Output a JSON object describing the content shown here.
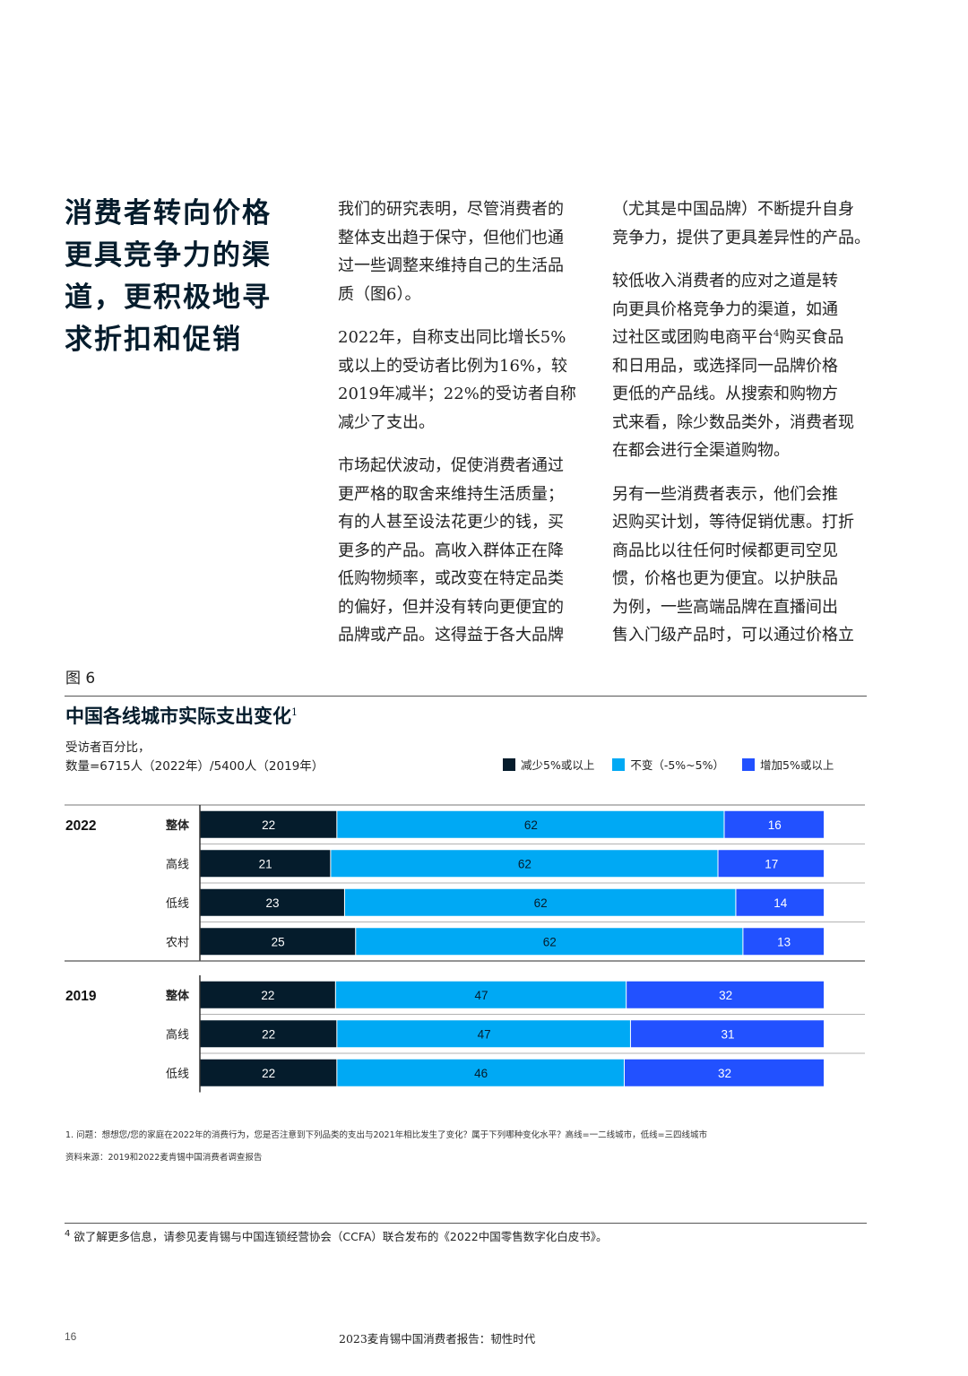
{
  "headline": {
    "lines": [
      "消费者转向价格",
      "更具竞争力的渠",
      "道，更积极地寻",
      "求折扣和促销"
    ]
  },
  "body": {
    "left_column": [
      {
        "lines": [
          "我们的研究表明，尽管消费者的",
          "整体支出趋于保守，但他们也通",
          "过一些调整来维持自己的生活品",
          "质（图6）。"
        ]
      },
      {
        "lines": [
          "2022年，自称支出同比增长5%",
          "或以上的受访者比例为16%，较",
          "2019年减半；22%的受访者自称",
          "减少了支出。"
        ]
      },
      {
        "lines": [
          "市场起伏波动，促使消费者通过",
          "更严格的取舍来维持生活质量；",
          "有的人甚至设法花更少的钱，买",
          "更多的产品。高收入群体正在降",
          "低购物频率，或改变在特定品类",
          "的偏好，但并没有转向更便宜的",
          "品牌或产品。这得益于各大品牌"
        ]
      }
    ],
    "right_column": [
      {
        "lines": [
          "（尤其是中国品牌）不断提升自身",
          "竞争力，提供了更具差异性的产品。"
        ]
      },
      {
        "lines_a": [
          "较低收入消费者的应对之道是转",
          "向更具价格竞争力的渠道，如通"
        ],
        "line_sup_pre": "过社区或团购电商平台",
        "line_sup_mark": "4",
        "line_sup_post": "购买食品",
        "lines_b": [
          "和日用品，或选择同一品牌价格",
          "更低的产品线。从搜索和购物方",
          "式来看，除少数品类外，消费者现",
          "在都会进行全渠道购物。"
        ]
      },
      {
        "lines": [
          "另有一些消费者表示，他们会推",
          "迟购买计划，等待促销优惠。打折",
          "商品比以往任何时候都更司空见",
          "惯，价格也更为便宜。以护肤品",
          "为例，一些高端品牌在直播间出",
          "售入门级产品时，可以通过价格立"
        ]
      }
    ]
  },
  "exhibit": {
    "figure_label": "图 6",
    "title": "中国各线城市实际支出变化",
    "title_sup": "1",
    "unit_lines": [
      "受访者百分比，",
      "数量=6715人（2022年）/5400人（2019年）"
    ],
    "legend": [
      {
        "label": "减少5%或以上",
        "color": "#051c2c"
      },
      {
        "label": "不变（-5%~5%）",
        "color": "#00a9f4"
      },
      {
        "label": "增加5%或以上",
        "color": "#2251ff"
      }
    ]
  },
  "chart_data": {
    "type": "bar",
    "orientation": "horizontal-stacked-100",
    "series_names": [
      "减少5%或以上",
      "不变（-5%~5%）",
      "增加5%或以上"
    ],
    "colors": [
      "#051c2c",
      "#00a9f4",
      "#2251ff"
    ],
    "label_colors": [
      "#ffffff",
      "#051c2c",
      "#ffffff"
    ],
    "groups": [
      {
        "year": "2022",
        "rows": [
          {
            "category": "整体",
            "bold": true,
            "values": [
              22,
              62,
              16
            ]
          },
          {
            "category": "高线",
            "bold": false,
            "values": [
              21,
              62,
              17
            ]
          },
          {
            "category": "低线",
            "bold": false,
            "values": [
              23,
              62,
              14
            ]
          },
          {
            "category": "农村",
            "bold": false,
            "values": [
              25,
              62,
              13
            ]
          }
        ]
      },
      {
        "year": "2019",
        "rows": [
          {
            "category": "整体",
            "bold": true,
            "values": [
              22,
              47,
              32
            ]
          },
          {
            "category": "高线",
            "bold": false,
            "values": [
              22,
              47,
              31
            ]
          },
          {
            "category": "低线",
            "bold": false,
            "values": [
              22,
              46,
              32
            ]
          }
        ]
      }
    ]
  },
  "notes": {
    "question": "1. 问题：想想您/您的家庭在2022年的消费行为，您是否注意到下列品类的支出与2021年相比发生了变化？属于下列哪种变化水平？高线=一二线城市，低线=三四线城市",
    "source": "资料来源：2019和2022麦肯锡中国消费者调查报告"
  },
  "footnote": {
    "mark": "4",
    "text": "欲了解更多信息，请参见麦肯锡与中国连锁经营协会（CCFA）联合发布的《2022中国零售数字化白皮书》。"
  },
  "footer": {
    "page_number": "16",
    "running_title": "2023麦肯锡中国消费者报告：韧性时代"
  }
}
